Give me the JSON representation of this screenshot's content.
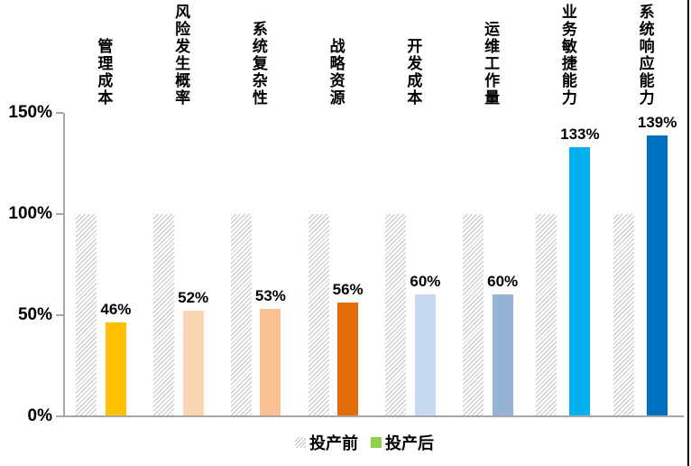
{
  "chart_data": {
    "type": "bar",
    "title": "",
    "categories": [
      "管理成本",
      "风险发生概率",
      "系统复杂性",
      "战略资源",
      "开发成本",
      "运维工作量",
      "业务敏捷能力",
      "系统响应能力"
    ],
    "series": [
      {
        "name": "投产前",
        "values": [
          100,
          100,
          100,
          100,
          100,
          100,
          100,
          100
        ],
        "style": "hatched",
        "hatch_color": "#C3C3C3"
      },
      {
        "name": "投产后",
        "values": [
          46,
          52,
          53,
          56,
          60,
          60,
          133,
          139
        ],
        "colors": [
          "#FFC000",
          "#FCD5B4",
          "#FAC090",
          "#E36C09",
          "#C6D9F1",
          "#95B3D7",
          "#00B0F0",
          "#0070C0"
        ],
        "legend_color": "#92D050"
      }
    ],
    "data_labels": [
      "46%",
      "52%",
      "53%",
      "56%",
      "60%",
      "60%",
      "133%",
      "139%"
    ],
    "ytick_labels": [
      "150%",
      "100%",
      "50%",
      "0%"
    ],
    "ylim": [
      0,
      150
    ],
    "grid": false,
    "legend_position": "bottom",
    "axis_color": "#A6A6A6",
    "label_color": "#000000"
  },
  "legend": {
    "before_label": "投产前",
    "after_label": "投产后"
  }
}
